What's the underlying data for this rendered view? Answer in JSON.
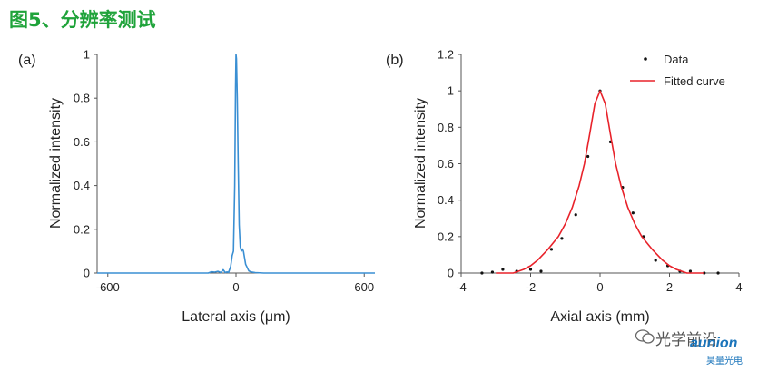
{
  "heading": "图5、分辨率测试",
  "watermark": {
    "account": "光学前沿",
    "logo": "aunion",
    "logo_sub": "昊量光电"
  },
  "colors": {
    "heading": "#1fa33a",
    "series_a": "#3a8fd3",
    "fit_curve": "#e8222a",
    "data_points": "#111111"
  },
  "chart_data": [
    {
      "panel_label": "(a)",
      "type": "line",
      "xlabel": "Lateral axis (μm)",
      "ylabel": "Normalized intensity",
      "xlim": [
        -650,
        650
      ],
      "ylim": [
        0,
        1
      ],
      "xticks": [
        -600,
        0,
        600
      ],
      "yticks": [
        0,
        0.2,
        0.4,
        0.6,
        0.8,
        1
      ],
      "grid": false,
      "series": [
        {
          "x": [
            -650,
            -130,
            -115,
            -100,
            -85,
            -70,
            -60,
            -50,
            -42,
            -35,
            -25,
            -18,
            -12,
            -6,
            -2,
            0,
            2,
            6,
            10,
            15,
            20,
            25,
            30,
            35,
            40,
            45,
            50,
            55,
            60,
            70,
            90,
            130,
            650
          ],
          "y": [
            0,
            0,
            0.006,
            0.004,
            0.008,
            0.002,
            0.015,
            0.002,
            0.005,
            0.003,
            0.03,
            0.08,
            0.1,
            0.4,
            0.85,
            1.0,
            0.98,
            0.8,
            0.5,
            0.22,
            0.12,
            0.1,
            0.11,
            0.1,
            0.07,
            0.04,
            0.03,
            0.02,
            0.01,
            0.005,
            0.002,
            0,
            0
          ]
        }
      ]
    },
    {
      "panel_label": "(b)",
      "type": "scatter",
      "xlabel": "Axial axis (mm)",
      "ylabel": "Normalized intensity",
      "xlim": [
        -4,
        4
      ],
      "ylim": [
        0,
        1.2
      ],
      "xticks": [
        -4,
        -2,
        0,
        2,
        4
      ],
      "yticks": [
        0,
        0.2,
        0.4,
        0.6,
        0.8,
        1,
        1.2
      ],
      "grid": false,
      "legend_position": "top-right",
      "series": [
        {
          "name": "Data",
          "style": "points",
          "x": [
            -3.4,
            -3.1,
            -2.8,
            -2.4,
            -2.0,
            -1.7,
            -1.4,
            -1.1,
            -0.7,
            -0.35,
            0,
            0.3,
            0.65,
            0.95,
            1.25,
            1.6,
            1.95,
            2.3,
            2.6,
            3.0,
            3.4
          ],
          "y": [
            0.0,
            0.005,
            0.02,
            0.01,
            0.02,
            0.01,
            0.13,
            0.19,
            0.32,
            0.64,
            1.0,
            0.72,
            0.47,
            0.33,
            0.2,
            0.07,
            0.04,
            0.01,
            0.01,
            0.0,
            0.0
          ]
        },
        {
          "name": "Fitted curve",
          "style": "line",
          "x": [
            -3.0,
            -2.5,
            -2.2,
            -2.0,
            -1.8,
            -1.5,
            -1.2,
            -1.0,
            -0.8,
            -0.6,
            -0.45,
            -0.3,
            -0.15,
            0,
            0.15,
            0.3,
            0.45,
            0.6,
            0.8,
            1.0,
            1.2,
            1.5,
            1.8,
            2.0,
            2.2,
            2.5,
            3.0
          ],
          "y": [
            0.0,
            0.0,
            0.02,
            0.04,
            0.07,
            0.13,
            0.2,
            0.27,
            0.36,
            0.48,
            0.6,
            0.76,
            0.93,
            1.0,
            0.93,
            0.76,
            0.6,
            0.48,
            0.36,
            0.27,
            0.2,
            0.13,
            0.07,
            0.04,
            0.02,
            0.0,
            0.0
          ]
        }
      ]
    }
  ]
}
